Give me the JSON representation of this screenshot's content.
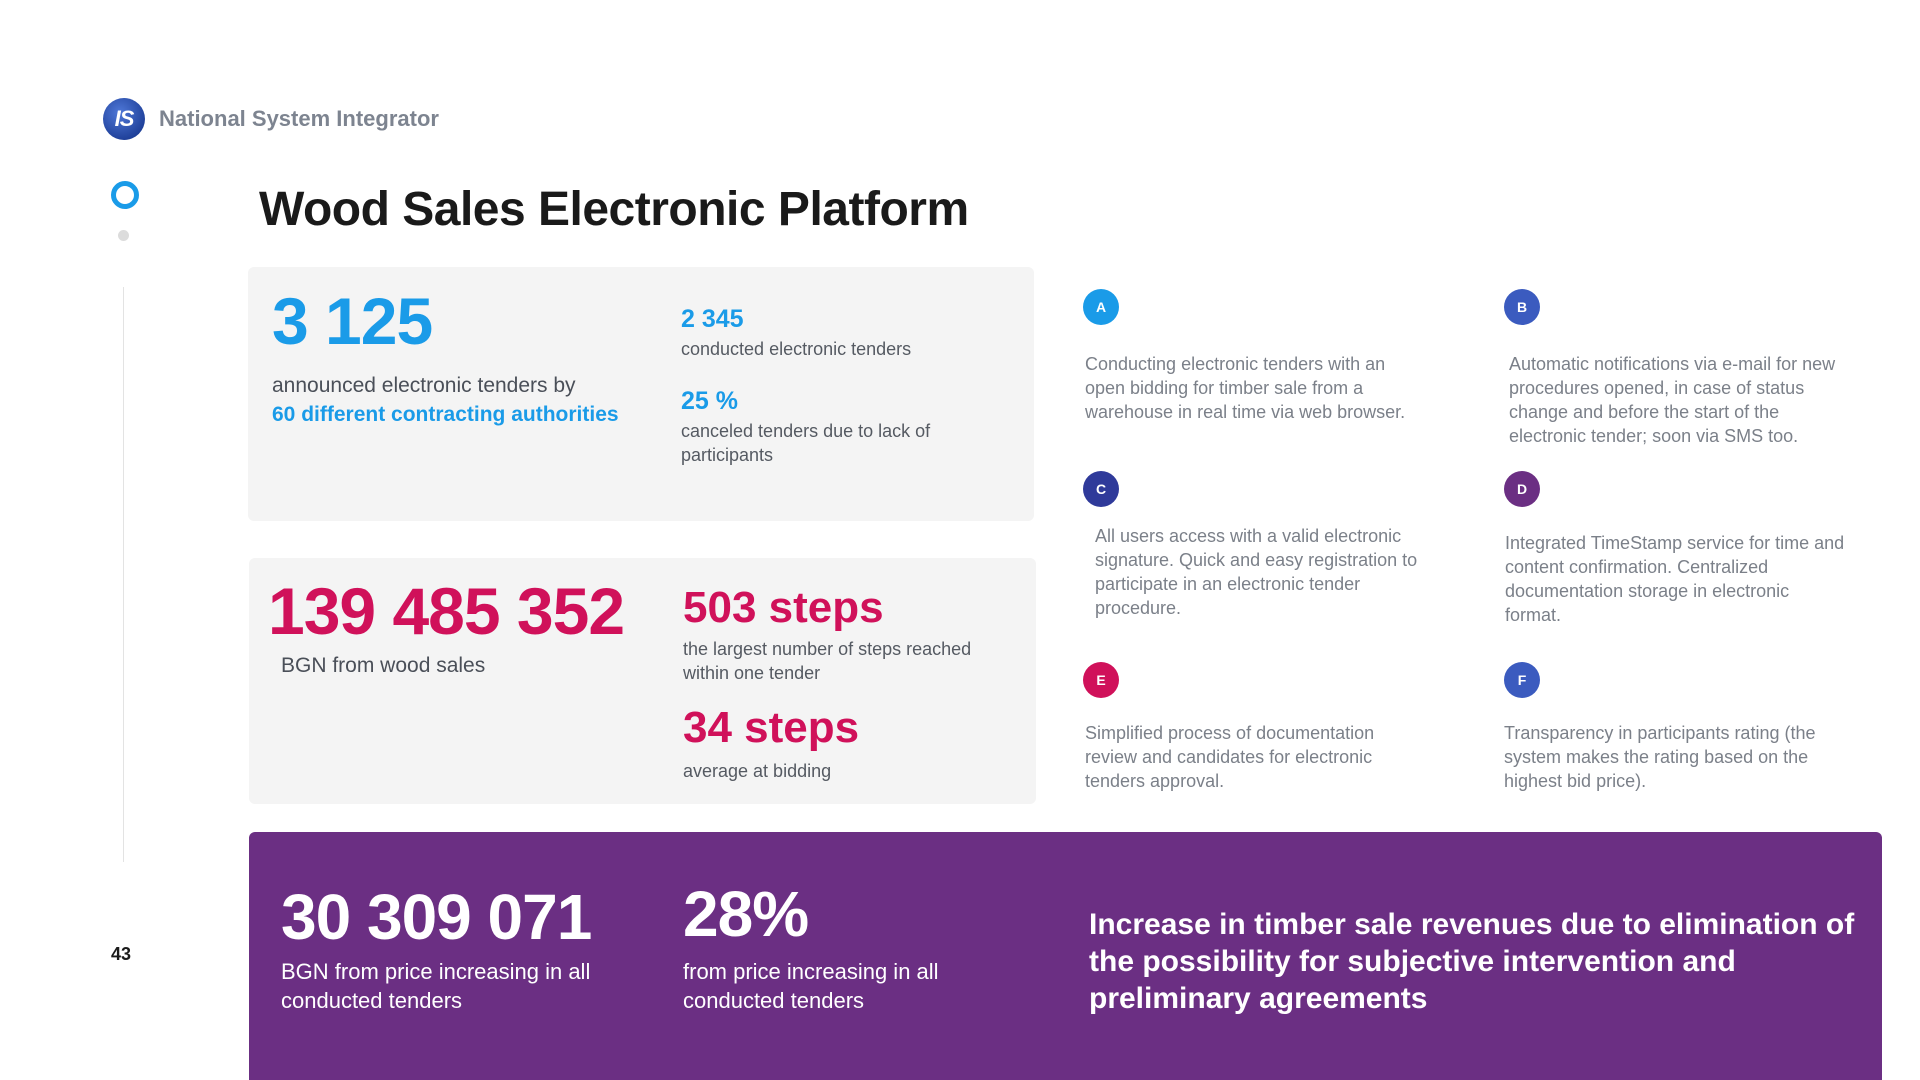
{
  "brand": {
    "logo_text": "IS",
    "name": "National System Integrator"
  },
  "page": {
    "number": "43",
    "title": "Wood Sales Electronic Platform"
  },
  "card1": {
    "big_value": "3 125",
    "big_label_plain": "announced electronic tenders by",
    "big_label_highlight": "60 different contracting authorities",
    "stat1_value": "2 345",
    "stat1_label": "conducted electronic tenders",
    "stat2_value": "25 %",
    "stat2_label": "canceled tenders due to lack of participants"
  },
  "card2": {
    "big_value": "139 485 352",
    "big_label": "BGN from wood sales",
    "stat1_value": "503 steps",
    "stat1_label": "the largest number of steps reached within one tender",
    "stat2_value": "34 steps",
    "stat2_label": "average at bidding"
  },
  "features": [
    {
      "badge": "A",
      "color": "#1a9be8",
      "text": "Conducting electronic tenders with an open bidding for timber sale from a warehouse in real time via web browser."
    },
    {
      "badge": "B",
      "color": "#3b5bbf",
      "text": "Automatic notifications via e-mail for new procedures opened, in case of status change and before the start of the electronic tender; soon via SMS too."
    },
    {
      "badge": "C",
      "color": "#2f3a9a",
      "text": "All users access with a valid electronic signature. Quick and easy registration to participate in an electronic tender procedure."
    },
    {
      "badge": "D",
      "color": "#6b2f83",
      "text": "Integrated TimeStamp service for time and content confirmation. Centralized documentation storage in electronic format."
    },
    {
      "badge": "E",
      "color": "#d0115a",
      "text": "Simplified process of documentation review and candidates for electronic tenders approval."
    },
    {
      "badge": "F",
      "color": "#3b5bbf",
      "text": "Transparency in participants rating (the system makes the rating based on the highest bid price)."
    }
  ],
  "banner": {
    "stat1_value": "30 309 071",
    "stat1_label": "BGN from price increasing in all conducted tenders",
    "stat2_value": "28%",
    "stat2_label": "from price increasing in all conducted tenders",
    "headline": "Increase in timber sale revenues due to elimination of the possibility for subjective intervention and preliminary agreements"
  },
  "colors": {
    "accent_blue": "#1a9be8",
    "accent_crimson": "#d0115a",
    "banner_purple": "#6b2f83",
    "card_bg": "#f4f4f4"
  }
}
